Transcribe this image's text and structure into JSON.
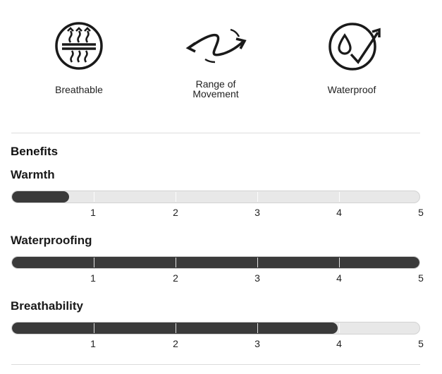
{
  "features": [
    {
      "icon": "breathable-icon",
      "label_lines": [
        "Breathable"
      ]
    },
    {
      "icon": "range-of-movement-icon",
      "label_lines": [
        "Range of",
        "Movement"
      ]
    },
    {
      "icon": "waterproof-icon",
      "label_lines": [
        "Waterproof"
      ]
    }
  ],
  "benefits_heading": "Benefits",
  "scale_labels": [
    "1",
    "2",
    "3",
    "4",
    "5"
  ],
  "benefits": [
    {
      "title": "Warmth",
      "value": 0.7,
      "max": 5
    },
    {
      "title": "Waterproofing",
      "value": 5,
      "max": 5
    },
    {
      "title": "Breathability",
      "value": 4,
      "max": 5
    }
  ],
  "colors": {
    "fill": "#3a3a3a",
    "track": "#e8e8e8"
  }
}
